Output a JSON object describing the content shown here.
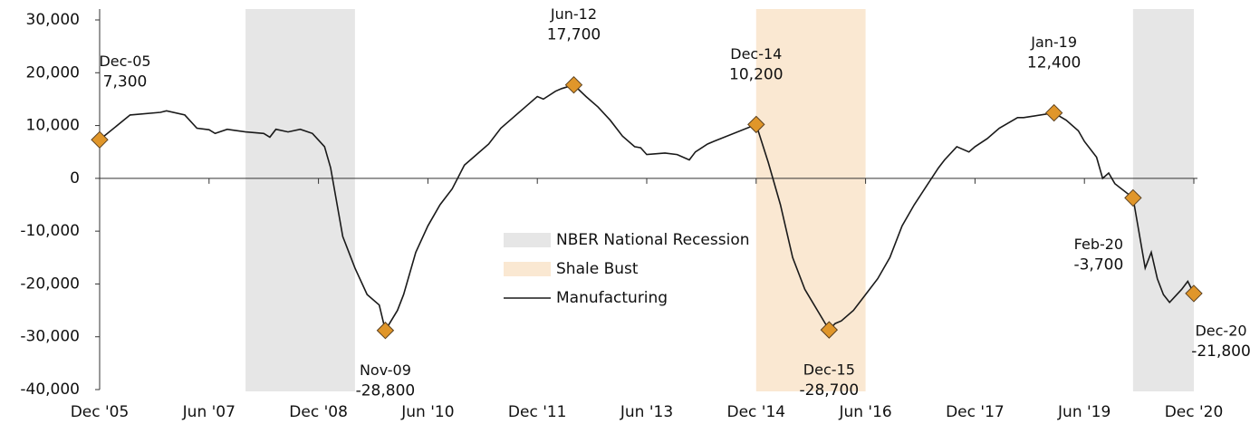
{
  "chart_data": {
    "type": "line",
    "series": [
      {
        "name": "Manufacturing",
        "color": "#1a1a1a",
        "x": [
          "2005-12",
          "2006-05",
          "2006-10",
          "2006-11",
          "2007-02",
          "2007-04",
          "2007-06",
          "2007-07",
          "2007-09",
          "2007-12",
          "2008-03",
          "2008-04",
          "2008-05",
          "2008-07",
          "2008-09",
          "2008-11",
          "2009-01",
          "2009-02",
          "2009-04",
          "2009-06",
          "2009-08",
          "2009-10",
          "2009-11",
          "2010-01",
          "2010-02",
          "2010-04",
          "2010-06",
          "2010-08",
          "2010-10",
          "2010-12",
          "2011-02",
          "2011-04",
          "2011-06",
          "2011-08",
          "2011-10",
          "2011-12",
          "2012-01",
          "2012-03",
          "2012-04",
          "2012-06",
          "2012-08",
          "2012-10",
          "2012-12",
          "2013-02",
          "2013-04",
          "2013-05",
          "2013-06",
          "2013-09",
          "2013-11",
          "2014-01",
          "2014-02",
          "2014-04",
          "2014-05",
          "2014-12",
          "2015-02",
          "2015-04",
          "2015-06",
          "2015-08",
          "2015-12",
          "2016-01",
          "2016-02",
          "2016-04",
          "2016-06",
          "2016-08",
          "2016-10",
          "2016-12",
          "2017-02",
          "2017-04",
          "2017-06",
          "2017-07",
          "2017-09",
          "2017-11",
          "2017-12",
          "2018-02",
          "2018-04",
          "2018-07",
          "2018-08",
          "2019-01",
          "2019-03",
          "2019-05",
          "2019-06",
          "2019-08",
          "2019-09",
          "2019-10",
          "2019-11",
          "2020-02",
          "2020-04",
          "2020-05",
          "2020-06",
          "2020-07",
          "2020-08",
          "2020-10",
          "2020-11",
          "2020-12"
        ],
        "values": [
          7300,
          12000,
          12500,
          12800,
          12000,
          9500,
          9200,
          8500,
          9300,
          8800,
          8500,
          7800,
          9300,
          8800,
          9300,
          8500,
          6000,
          2000,
          -11000,
          -17000,
          -22000,
          -24000,
          -28800,
          -25000,
          -22000,
          -14000,
          -9000,
          -5000,
          -2000,
          2500,
          4500,
          6500,
          9500,
          11500,
          13500,
          15500,
          15000,
          16500,
          17000,
          17700,
          15500,
          13500,
          11000,
          8000,
          6000,
          5800,
          4500,
          4800,
          4500,
          3500,
          5000,
          6500,
          7000,
          10200,
          3000,
          -5000,
          -15000,
          -21000,
          -28700,
          -27500,
          -27000,
          -25000,
          -22000,
          -19000,
          -15000,
          -9000,
          -5000,
          -1500,
          2000,
          3500,
          6000,
          5000,
          6000,
          7500,
          9500,
          11500,
          11500,
          12400,
          11000,
          9000,
          7000,
          4000,
          0,
          1000,
          -1000,
          -3700,
          -17000,
          -14000,
          -19000,
          -22000,
          -23500,
          -21000,
          -19500,
          -21800
        ]
      }
    ],
    "bands": [
      {
        "name": "NBER National Recession",
        "color": "#e6e6e6",
        "start": "2007-12",
        "end": "2009-06"
      },
      {
        "name": "Shale Bust",
        "color": "#fae8d2",
        "start": "2014-12",
        "end": "2016-06"
      },
      {
        "name": "NBER National Recession",
        "color": "#e6e6e6",
        "start": "2020-02",
        "end": "2020-12"
      }
    ],
    "annotations": [
      {
        "x": "2005-12",
        "label": "Dec-05",
        "value": 7300,
        "value_label": "7,300"
      },
      {
        "x": "2009-11",
        "label": "Nov-09",
        "value": -28800,
        "value_label": "-28,800"
      },
      {
        "x": "2012-06",
        "label": "Jun-12",
        "value": 17700,
        "value_label": "17,700"
      },
      {
        "x": "2014-12",
        "label": "Dec-14",
        "value": 10200,
        "value_label": "10,200"
      },
      {
        "x": "2015-12",
        "label": "Dec-15",
        "value": -28700,
        "value_label": "-28,700"
      },
      {
        "x": "2019-01",
        "label": "Jan-19",
        "value": 12400,
        "value_label": "12,400"
      },
      {
        "x": "2020-02",
        "label": "Feb-20",
        "value": -3700,
        "value_label": "-3,700"
      },
      {
        "x": "2020-12",
        "label": "Dec-20",
        "value": -21800,
        "value_label": "-21,800"
      }
    ],
    "marker_color": "#e0962a",
    "xlim": [
      "2005-12",
      "2020-12"
    ],
    "xticks": [
      {
        "value": "2005-12",
        "label": "Dec '05"
      },
      {
        "value": "2007-06",
        "label": "Jun '07"
      },
      {
        "value": "2008-12",
        "label": "Dec '08"
      },
      {
        "value": "2010-06",
        "label": "Jun '10"
      },
      {
        "value": "2011-12",
        "label": "Dec '11"
      },
      {
        "value": "2013-06",
        "label": "Jun '13"
      },
      {
        "value": "2014-12",
        "label": "Dec '14"
      },
      {
        "value": "2016-06",
        "label": "Jun '16"
      },
      {
        "value": "2017-12",
        "label": "Dec '17"
      },
      {
        "value": "2019-06",
        "label": "Jun '19"
      },
      {
        "value": "2020-12",
        "label": "Dec '20"
      }
    ],
    "ylim": [
      -40000,
      30000
    ],
    "yticks": [
      {
        "value": -40000,
        "label": "-40,000"
      },
      {
        "value": -30000,
        "label": "-30,000"
      },
      {
        "value": -20000,
        "label": "-20,000"
      },
      {
        "value": -10000,
        "label": "-10,000"
      },
      0,
      {
        "value": 10000,
        "label": "10,000"
      },
      {
        "value": 20000,
        "label": "20,000"
      },
      {
        "value": 30000,
        "label": "30,000"
      }
    ]
  }
}
